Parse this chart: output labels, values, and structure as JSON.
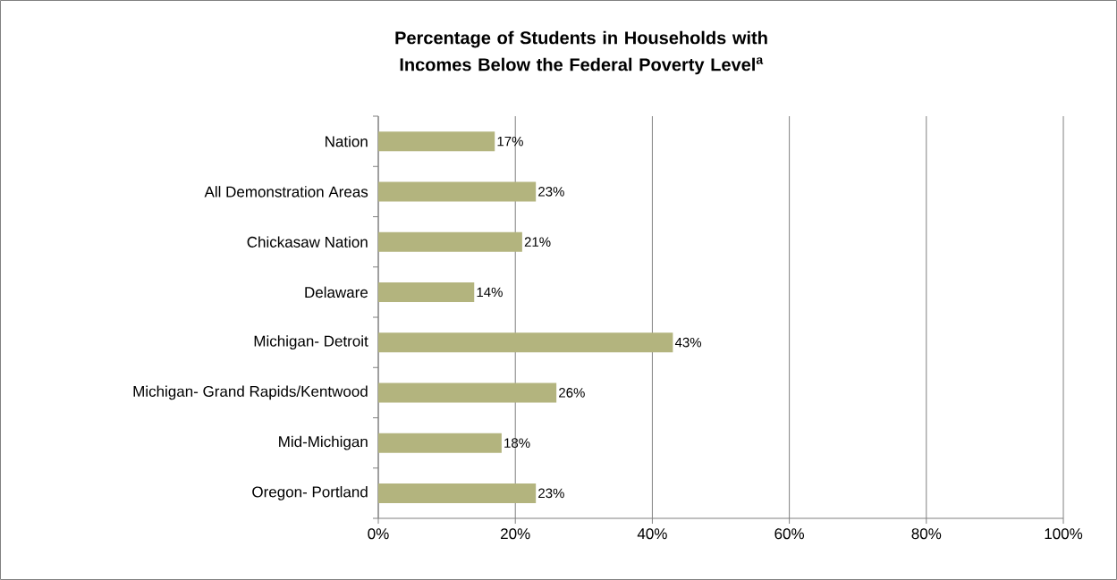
{
  "chart_data": {
    "type": "bar",
    "orientation": "horizontal",
    "title": "Percentage of Students in Households with Incomes Below the Federal Poverty Level$^{a}$",
    "categories": [
      "Nation",
      "All Demonstration Areas",
      "Chickasaw Nation",
      "Delaware",
      "Michigan- Detroit",
      "Michigan- Grand Rapids/Kentwood",
      "Mid-Michigan",
      "Oregon- Portland"
    ],
    "values": [
      17,
      23,
      21,
      14,
      43,
      26,
      18,
      23
    ],
    "value_labels": [
      "17%",
      "23%",
      "21%",
      "14%",
      "43%",
      "26%",
      "18%",
      "23%"
    ],
    "color": "#b3b47e",
    "xlim": [
      0,
      100
    ],
    "xticks": [
      {
        "value": 0,
        "label": "0%"
      },
      {
        "value": 20,
        "label": "20%"
      },
      {
        "value": 40,
        "label": "40%"
      },
      {
        "value": 60,
        "label": "60%"
      },
      {
        "value": 80,
        "label": "80%"
      },
      {
        "value": 100,
        "label": "100%"
      }
    ],
    "grid": "x"
  }
}
